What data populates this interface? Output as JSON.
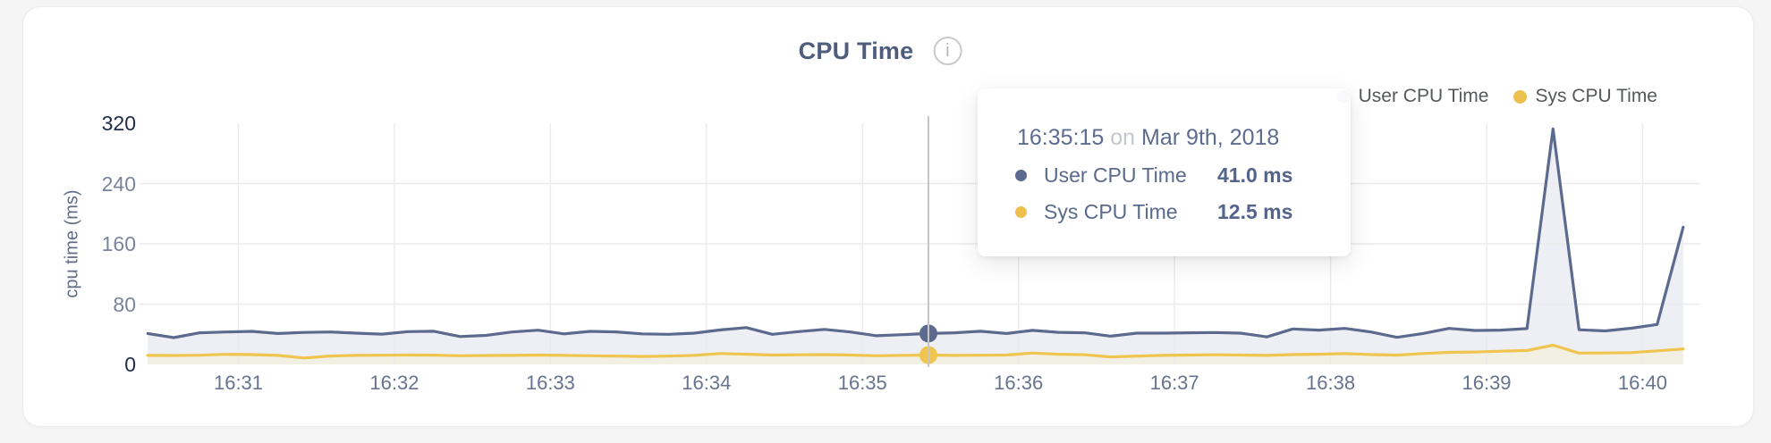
{
  "header": {
    "title": "CPU Time",
    "info_icon": "i"
  },
  "legend": {
    "position": "top-right",
    "items": [
      {
        "label": "User CPU Time",
        "color": "#5b6a8e"
      },
      {
        "label": "Sys CPU Time",
        "color": "#ecbf4e"
      }
    ]
  },
  "tooltip": {
    "time": "16:35:15",
    "conjunction": "on",
    "date": "Mar 9th, 2018",
    "rows": [
      {
        "label": "User CPU Time",
        "value": "41.0 ms",
        "color": "#5b6a8e"
      },
      {
        "label": "Sys CPU Time",
        "value": "12.5 ms",
        "color": "#ecbf4e"
      }
    ]
  },
  "chart_data": {
    "type": "area",
    "title": "CPU Time",
    "xlabel": "",
    "ylabel": "cpu time (ms)",
    "ylim": [
      0,
      320
    ],
    "y_ticks": [
      0,
      80,
      160,
      240,
      320
    ],
    "x_ticks": [
      "16:31",
      "16:32",
      "16:33",
      "16:34",
      "16:35",
      "16:36",
      "16:37",
      "16:38",
      "16:39",
      "16:40"
    ],
    "grid": "on",
    "legend_position": "top-right",
    "unit": "ms",
    "x": [
      "16:30:15",
      "16:30:25",
      "16:30:35",
      "16:30:45",
      "16:30:55",
      "16:31:05",
      "16:31:15",
      "16:31:25",
      "16:31:35",
      "16:31:45",
      "16:31:55",
      "16:32:05",
      "16:32:15",
      "16:32:25",
      "16:32:35",
      "16:32:45",
      "16:32:55",
      "16:33:05",
      "16:33:15",
      "16:33:25",
      "16:33:35",
      "16:33:45",
      "16:33:55",
      "16:34:05",
      "16:34:15",
      "16:34:25",
      "16:34:35",
      "16:34:45",
      "16:34:55",
      "16:35:05",
      "16:35:15",
      "16:35:25",
      "16:35:35",
      "16:35:45",
      "16:35:55",
      "16:36:05",
      "16:36:15",
      "16:36:25",
      "16:36:35",
      "16:36:45",
      "16:36:55",
      "16:37:05",
      "16:37:15",
      "16:37:25",
      "16:37:35",
      "16:37:45",
      "16:37:55",
      "16:38:05",
      "16:38:15",
      "16:38:25",
      "16:38:35",
      "16:38:45",
      "16:38:55",
      "16:39:05",
      "16:39:15",
      "16:39:25",
      "16:39:35",
      "16:39:45",
      "16:39:55",
      "16:40:05"
    ],
    "series": [
      {
        "name": "User CPU Time",
        "color": "#5b6a8e",
        "fill": "#edeff4",
        "values": [
          41.0,
          35.5,
          42.0,
          43.0,
          43.8,
          41.0,
          42.4,
          43.0,
          41.5,
          40.2,
          43.5,
          44.0,
          37.0,
          38.5,
          43.0,
          45.4,
          40.5,
          43.8,
          43.2,
          40.5,
          40.0,
          41.5,
          45.8,
          48.8,
          40.0,
          43.5,
          46.5,
          43.0,
          38.0,
          39.5,
          41.0,
          42.0,
          44.0,
          41.0,
          45.2,
          42.5,
          42.0,
          37.5,
          41.5,
          41.5,
          42.0,
          42.3,
          41.5,
          36.5,
          47.0,
          45.5,
          47.8,
          43.0,
          35.9,
          41.0,
          47.8,
          45.0,
          45.5,
          47.5,
          312.5,
          46.0,
          44.5,
          48.0,
          53.0,
          182.0
        ]
      },
      {
        "name": "Sys CPU Time",
        "color": "#efc44f",
        "fill": "#f2efe3",
        "values": [
          12.0,
          11.8,
          12.2,
          13.4,
          13.0,
          12.0,
          8.5,
          11.2,
          12.0,
          12.2,
          12.5,
          12.3,
          11.5,
          11.8,
          12.0,
          12.5,
          12.0,
          11.5,
          11.0,
          10.5,
          11.0,
          12.0,
          14.5,
          13.5,
          12.5,
          12.8,
          13.0,
          12.5,
          11.5,
          12.0,
          12.5,
          12.0,
          12.2,
          12.5,
          15.1,
          13.5,
          12.8,
          10.0,
          11.0,
          12.0,
          12.5,
          12.8,
          12.5,
          12.0,
          13.0,
          13.5,
          14.3,
          13.0,
          12.3,
          14.5,
          16.0,
          16.5,
          17.5,
          18.5,
          25.5,
          15.0,
          15.2,
          15.6,
          18.0,
          20.5
        ]
      }
    ],
    "hover": {
      "index": 30,
      "time": "16:35:15",
      "values": [
        41.0,
        12.5
      ],
      "line_color": "#c6c6c6"
    }
  }
}
